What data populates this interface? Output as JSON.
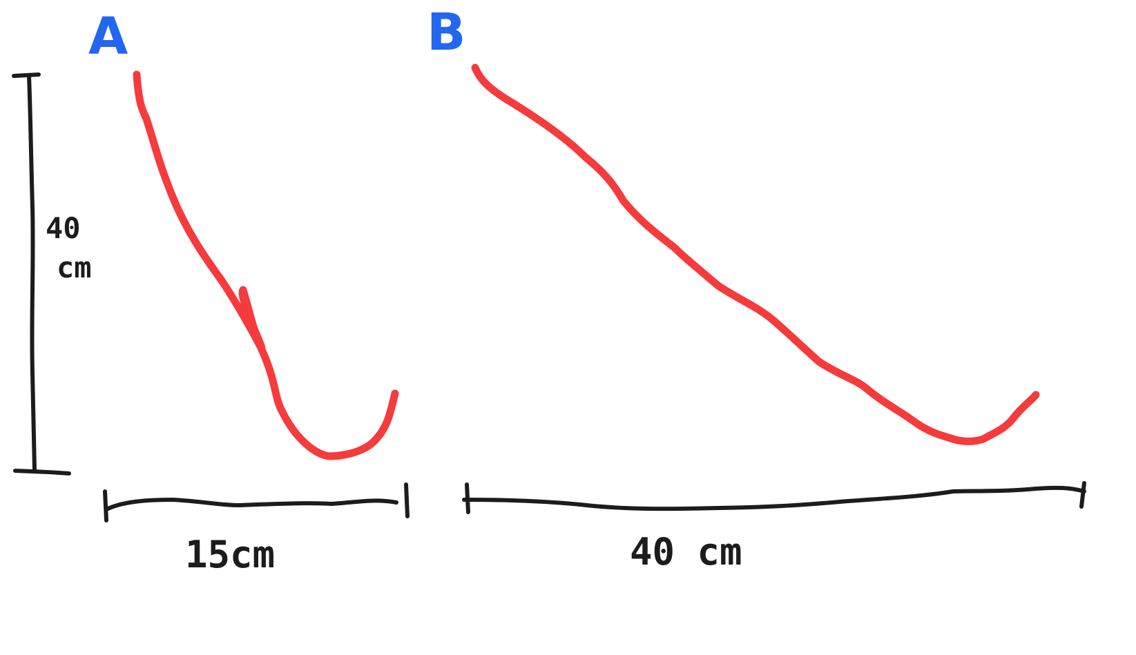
{
  "colors": {
    "curve": "#f53b3b",
    "ink": "#1c1c1c",
    "letter": "#2366f0",
    "background": "#ffffff"
  },
  "labels": {
    "curve_a": "A",
    "curve_b": "B",
    "height_value": "40",
    "height_unit": "cm",
    "width_a": "15cm",
    "width_b": "40 cm"
  }
}
